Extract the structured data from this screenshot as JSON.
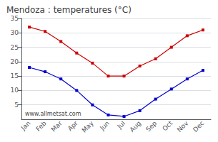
{
  "chart_data": {
    "type": "line",
    "title": "Mendoza : temperatures (°C)",
    "categories": [
      "Jan",
      "Feb",
      "Mar",
      "Apr",
      "May",
      "Jun",
      "Jul",
      "Aug",
      "Sep",
      "Oct",
      "Nov",
      "Dec"
    ],
    "series": [
      {
        "color": "#cc0000",
        "marker": "square",
        "values": [
          32,
          30.5,
          27,
          23,
          19.5,
          15,
          15,
          18.5,
          21,
          25,
          29,
          31
        ]
      },
      {
        "color": "#0000cc",
        "marker": "square",
        "values": [
          18,
          16.5,
          14,
          10,
          5,
          1.5,
          1,
          3,
          7,
          10.5,
          14,
          17
        ]
      }
    ],
    "ylim": [
      0,
      35
    ],
    "yticks": [
      5,
      10,
      15,
      20,
      25,
      30,
      35
    ],
    "grid": true,
    "annotations": [
      "www.allmetsat.com"
    ]
  }
}
